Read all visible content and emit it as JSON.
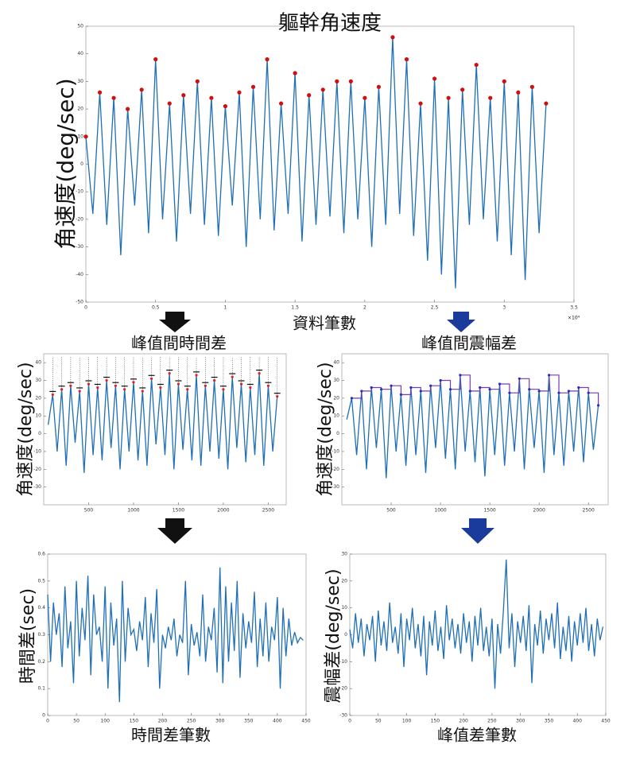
{
  "chart_data": [
    {
      "type": "line",
      "title": "軀幹角速度",
      "ylabel": "角速度(deg/sec)",
      "xlabel": "資料筆數",
      "x_multiplier": "×10⁴",
      "color": "#1f6fb8",
      "peak_color": "#d01010",
      "xlim": [
        0,
        3.5
      ],
      "xticks": [
        0,
        0.5,
        1,
        1.5,
        2,
        2.5,
        3,
        3.5
      ],
      "ylim": [
        -50,
        50
      ],
      "yticks": [
        -50,
        -40,
        -30,
        -20,
        -10,
        0,
        10,
        20,
        30,
        40,
        50
      ],
      "x": [
        0,
        0.05,
        0.1,
        0.15,
        0.2,
        0.25,
        0.3,
        0.35,
        0.4,
        0.45,
        0.5,
        0.55,
        0.6,
        0.65,
        0.7,
        0.75,
        0.8,
        0.85,
        0.9,
        0.95,
        1,
        1.05,
        1.1,
        1.15,
        1.2,
        1.25,
        1.3,
        1.35,
        1.4,
        1.45,
        1.5,
        1.55,
        1.6,
        1.65,
        1.7,
        1.75,
        1.8,
        1.85,
        1.9,
        1.95,
        2,
        2.05,
        2.1,
        2.15,
        2.2,
        2.25,
        2.3,
        2.35,
        2.4,
        2.45,
        2.5,
        2.55,
        2.6,
        2.65,
        2.7,
        2.75,
        2.8,
        2.85,
        2.9,
        2.95,
        3,
        3.05,
        3.1,
        3.15,
        3.2,
        3.25,
        3.3
      ],
      "values": [
        10,
        -18,
        26,
        -22,
        24,
        -33,
        20,
        -15,
        27,
        -25,
        38,
        -20,
        22,
        -28,
        25,
        -18,
        30,
        -22,
        24,
        -26,
        21,
        -15,
        26,
        -30,
        28,
        -20,
        38,
        -24,
        22,
        -18,
        33,
        -28,
        25,
        -22,
        27,
        -19,
        30,
        -25,
        30,
        -20,
        24,
        -30,
        28,
        -22,
        46,
        -18,
        38,
        -26,
        22,
        -35,
        31,
        -40,
        24,
        -45,
        27,
        -22,
        36,
        -20,
        24,
        -28,
        30,
        -33,
        26,
        -42,
        28,
        -25,
        22
      ]
    },
    {
      "type": "line",
      "title": "峰值間時間差",
      "title_color": "#111111",
      "ylabel": "角速度(deg/sec)",
      "color": "#1f6fb8",
      "peak_color": "#e02020",
      "peak_style": "dash",
      "step_color": "#111111",
      "xlim": [
        0,
        2700
      ],
      "xticks": [
        500,
        1000,
        1500,
        2000,
        2500
      ],
      "ylim": [
        -40,
        45
      ],
      "yticks": [
        -30,
        -20,
        -10,
        0,
        10,
        20,
        30,
        40
      ],
      "x": [
        50,
        100,
        150,
        200,
        250,
        300,
        350,
        400,
        450,
        500,
        550,
        600,
        650,
        700,
        750,
        800,
        850,
        900,
        950,
        1000,
        1050,
        1100,
        1150,
        1200,
        1250,
        1300,
        1350,
        1400,
        1450,
        1500,
        1550,
        1600,
        1650,
        1700,
        1750,
        1800,
        1850,
        1900,
        1950,
        2000,
        2050,
        2100,
        2150,
        2200,
        2250,
        2300,
        2350,
        2400,
        2450,
        2500,
        2550,
        2600
      ],
      "values": [
        5,
        22,
        -10,
        25,
        -18,
        27,
        -5,
        24,
        -22,
        28,
        -12,
        26,
        -15,
        30,
        -8,
        27,
        -20,
        25,
        -10,
        29,
        -15,
        24,
        -18,
        31,
        -6,
        26,
        -12,
        34,
        -20,
        28,
        -9,
        25,
        -15,
        33,
        -18,
        27,
        -10,
        30,
        -14,
        25,
        -20,
        32,
        -8,
        28,
        -16,
        26,
        -12,
        34,
        -18,
        27,
        -10,
        21
      ]
    },
    {
      "type": "line",
      "title": "峰值間震幅差",
      "title_color": "#1a3a9c",
      "ylabel": "角速度(deg/sec)",
      "color": "#1f6fb8",
      "peak_color": "#2030c0",
      "peak_style": "step",
      "step_color": "#7a3ab0",
      "xlim": [
        0,
        2700
      ],
      "xticks": [
        500,
        1000,
        1500,
        2000,
        2500
      ],
      "ylim": [
        -40,
        45
      ],
      "yticks": [
        -30,
        -20,
        -10,
        0,
        10,
        20,
        30,
        40
      ],
      "x": [
        50,
        100,
        150,
        200,
        250,
        300,
        350,
        400,
        450,
        500,
        550,
        600,
        650,
        700,
        750,
        800,
        850,
        900,
        950,
        1000,
        1050,
        1100,
        1150,
        1200,
        1250,
        1300,
        1350,
        1400,
        1450,
        1500,
        1550,
        1600,
        1650,
        1700,
        1750,
        1800,
        1850,
        1900,
        1950,
        2000,
        2050,
        2100,
        2150,
        2200,
        2250,
        2300,
        2350,
        2400,
        2450,
        2500,
        2550,
        2600
      ],
      "values": [
        8,
        20,
        -12,
        24,
        -20,
        26,
        -8,
        25,
        -25,
        27,
        -10,
        22,
        -18,
        26,
        -12,
        24,
        -22,
        27,
        -8,
        30,
        -14,
        25,
        -20,
        33,
        -10,
        24,
        -16,
        26,
        -24,
        25,
        -12,
        28,
        -18,
        23,
        -10,
        31,
        -20,
        25,
        -8,
        24,
        -22,
        33,
        -12,
        23,
        -18,
        24,
        -10,
        26,
        -16,
        23,
        -9,
        16
      ]
    },
    {
      "type": "line",
      "ylabel": "時間差(sec)",
      "xlabel": "時間差筆數",
      "xlabel_color": "#111111",
      "color": "#1f6fb8",
      "xlim": [
        0,
        450
      ],
      "xticks": [
        0,
        50,
        100,
        150,
        200,
        250,
        300,
        350,
        400,
        450
      ],
      "ylim": [
        0,
        0.6
      ],
      "yticks": [
        0,
        0.1,
        0.2,
        0.3,
        0.4,
        0.5,
        0.6
      ],
      "x": [
        0,
        5,
        10,
        15,
        20,
        25,
        30,
        35,
        40,
        45,
        50,
        55,
        60,
        65,
        70,
        75,
        80,
        85,
        90,
        95,
        100,
        105,
        110,
        115,
        120,
        125,
        130,
        135,
        140,
        145,
        150,
        155,
        160,
        165,
        170,
        175,
        180,
        185,
        190,
        195,
        200,
        205,
        210,
        215,
        220,
        225,
        230,
        235,
        240,
        245,
        250,
        255,
        260,
        265,
        270,
        275,
        280,
        285,
        290,
        295,
        300,
        305,
        310,
        315,
        320,
        325,
        330,
        335,
        340,
        345,
        350,
        355,
        360,
        365,
        370,
        375,
        380,
        385,
        390,
        395,
        400,
        405,
        410,
        415,
        420,
        425,
        430,
        435,
        440,
        445
      ],
      "values": [
        0.45,
        0.2,
        0.42,
        0.3,
        0.38,
        0.18,
        0.48,
        0.25,
        0.35,
        0.12,
        0.5,
        0.22,
        0.4,
        0.28,
        0.52,
        0.15,
        0.45,
        0.3,
        0.33,
        0.2,
        0.48,
        0.1,
        0.42,
        0.26,
        0.36,
        0.05,
        0.5,
        0.2,
        0.4,
        0.3,
        0.32,
        0.24,
        0.35,
        0.28,
        0.44,
        0.18,
        0.38,
        0.27,
        0.47,
        0.1,
        0.3,
        0.25,
        0.33,
        0.28,
        0.36,
        0.22,
        0.3,
        0.27,
        0.5,
        0.15,
        0.34,
        0.26,
        0.31,
        0.22,
        0.45,
        0.2,
        0.33,
        0.28,
        0.4,
        0.16,
        0.55,
        0.12,
        0.48,
        0.2,
        0.42,
        0.24,
        0.5,
        0.14,
        0.38,
        0.25,
        0.35,
        0.27,
        0.46,
        0.18,
        0.36,
        0.22,
        0.42,
        0.2,
        0.33,
        0.28,
        0.44,
        0.1,
        0.4,
        0.22,
        0.36,
        0.26,
        0.31,
        0.27,
        0.29,
        0.28
      ]
    },
    {
      "type": "line",
      "ylabel": "震幅差(deg/sec)",
      "xlabel": "峰值差筆數",
      "xlabel_color": "#1a3a9c",
      "color": "#1f6fb8",
      "xlim": [
        0,
        450
      ],
      "xticks": [
        0,
        50,
        100,
        150,
        200,
        250,
        300,
        350,
        400,
        450
      ],
      "ylim": [
        -30,
        30
      ],
      "yticks": [
        -30,
        -20,
        -10,
        0,
        10,
        20,
        30
      ],
      "x": [
        0,
        5,
        10,
        15,
        20,
        25,
        30,
        35,
        40,
        45,
        50,
        55,
        60,
        65,
        70,
        75,
        80,
        85,
        90,
        95,
        100,
        105,
        110,
        115,
        120,
        125,
        130,
        135,
        140,
        145,
        150,
        155,
        160,
        165,
        170,
        175,
        180,
        185,
        190,
        195,
        200,
        205,
        210,
        215,
        220,
        225,
        230,
        235,
        240,
        245,
        250,
        255,
        260,
        265,
        270,
        275,
        280,
        285,
        290,
        295,
        300,
        305,
        310,
        315,
        320,
        325,
        330,
        335,
        340,
        345,
        350,
        355,
        360,
        365,
        370,
        375,
        380,
        385,
        390,
        395,
        400,
        405,
        410,
        415,
        420,
        425,
        430,
        435,
        440,
        445
      ],
      "values": [
        2,
        -5,
        8,
        -3,
        6,
        -8,
        4,
        -2,
        7,
        -10,
        9,
        -4,
        5,
        -6,
        12,
        -3,
        3,
        -7,
        8,
        -12,
        6,
        -2,
        10,
        -5,
        4,
        -8,
        7,
        -15,
        5,
        -4,
        9,
        -6,
        3,
        -9,
        11,
        -2,
        6,
        -5,
        4,
        -7,
        8,
        -3,
        5,
        -10,
        7,
        -4,
        10,
        -6,
        3,
        -8,
        6,
        -20,
        4,
        -7,
        9,
        28,
        -5,
        8,
        -12,
        5,
        -3,
        7,
        -6,
        11,
        -18,
        4,
        -4,
        9,
        -7,
        6,
        -2,
        8,
        -5,
        12,
        -9,
        3,
        -6,
        7,
        -10,
        5,
        -4,
        8,
        -3,
        10,
        -6,
        4,
        -8,
        6,
        -2,
        3
      ]
    }
  ]
}
